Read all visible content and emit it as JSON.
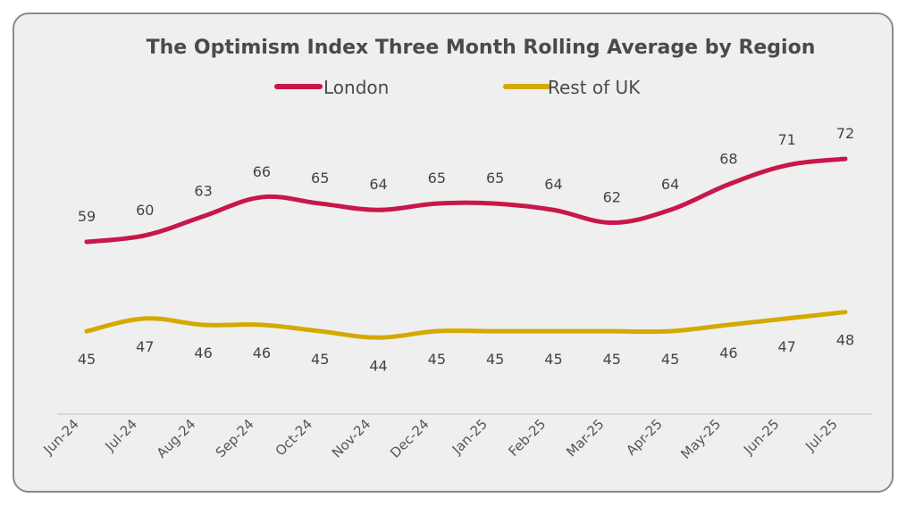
{
  "chart_data": {
    "type": "line",
    "title": "The Optimism Index Three Month Rolling Average by Region",
    "legend_position": "top-center",
    "grid": false,
    "categories": [
      "Jun-24",
      "Jul-24",
      "Aug-24",
      "Sep-24",
      "Oct-24",
      "Nov-24",
      "Dec-24",
      "Jan-25",
      "Feb-25",
      "Mar-25",
      "Apr-25",
      "May-25",
      "Jun-25",
      "Jul-25"
    ],
    "series": [
      {
        "name": "London",
        "color": "#c8174a",
        "values": [
          59,
          60,
          63,
          66,
          65,
          64,
          65,
          65,
          64,
          62,
          64,
          68,
          71,
          72
        ]
      },
      {
        "name": "Rest of UK",
        "color": "#d4a900",
        "values": [
          45,
          47,
          46,
          46,
          45,
          44,
          45,
          45,
          45,
          45,
          45,
          46,
          47,
          48
        ]
      }
    ]
  }
}
